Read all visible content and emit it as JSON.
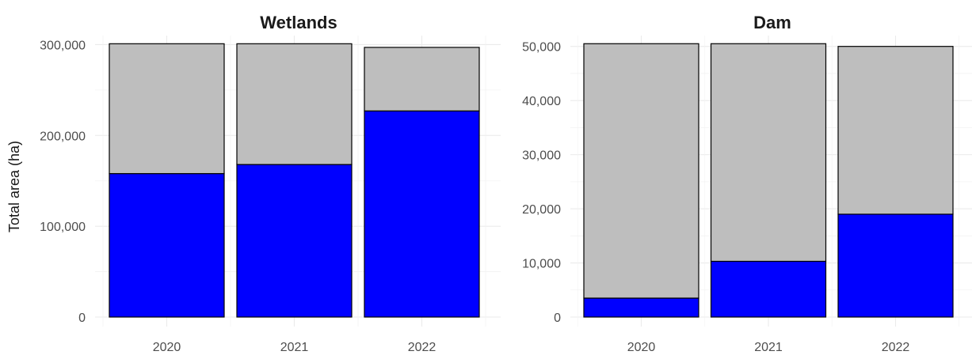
{
  "chart_data": [
    {
      "type": "bar",
      "stacked": true,
      "title": "Wetlands",
      "xlabel": "",
      "ylabel": "Total area (ha)",
      "categories": [
        "2020",
        "2021",
        "2022"
      ],
      "series": [
        {
          "color": "#0000ff",
          "values": [
            158000,
            168000,
            227000
          ]
        },
        {
          "color": "#bebebe",
          "values": [
            143000,
            133000,
            70000
          ]
        }
      ],
      "ylim": [
        0,
        310000
      ],
      "yticks": [
        0,
        100000,
        200000,
        300000
      ],
      "ytick_labels": [
        "0",
        "100,000",
        "200,000",
        "300,000"
      ],
      "grid": true,
      "legend": "none"
    },
    {
      "type": "bar",
      "stacked": true,
      "title": "Dam",
      "xlabel": "",
      "ylabel": "",
      "categories": [
        "2020",
        "2021",
        "2022"
      ],
      "series": [
        {
          "color": "#0000ff",
          "values": [
            3500,
            10300,
            19000
          ]
        },
        {
          "color": "#bebebe",
          "values": [
            47000,
            40200,
            31000
          ]
        }
      ],
      "ylim": [
        0,
        52000
      ],
      "yticks": [
        0,
        10000,
        20000,
        30000,
        40000,
        50000
      ],
      "ytick_labels": [
        "0",
        "10,000",
        "20,000",
        "30,000",
        "40,000",
        "50,000"
      ],
      "grid": true,
      "legend": "none"
    }
  ]
}
